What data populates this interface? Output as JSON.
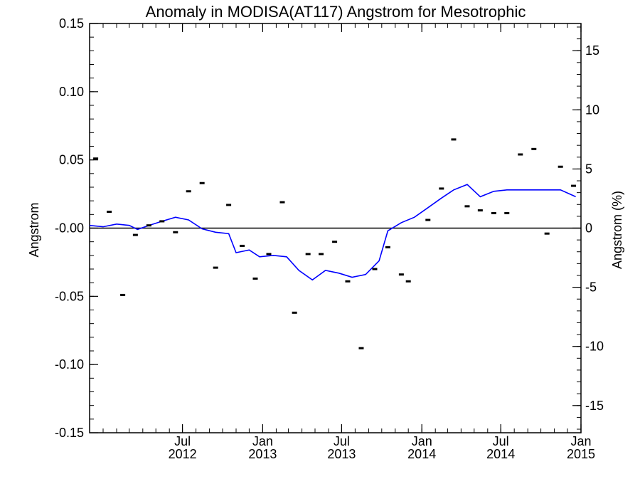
{
  "chart_data": {
    "type": "scatter",
    "title": "Anomaly in MODISA(AT117) Angstrom for Mesotrophic",
    "ylabel": "Angstrom",
    "ylabel_right": "Angstrom (%)",
    "xlabel": "",
    "xlim": [
      "2011-12-01",
      "2015-01-01"
    ],
    "ylim": [
      -0.15,
      0.15
    ],
    "ylim_right": [
      -17.3,
      17.3
    ],
    "x_ticks": [
      {
        "date": "2012-07-01",
        "line1": "Jul",
        "line2": "2012"
      },
      {
        "date": "2013-01-01",
        "line1": "Jan",
        "line2": "2013"
      },
      {
        "date": "2013-07-01",
        "line1": "Jul",
        "line2": "2013"
      },
      {
        "date": "2014-01-01",
        "line1": "Jan",
        "line2": "2014"
      },
      {
        "date": "2014-07-01",
        "line1": "Jul",
        "line2": "2014"
      },
      {
        "date": "2015-01-01",
        "line1": "Jan",
        "line2": "2015"
      }
    ],
    "y_ticks_left": [
      "0.15",
      "0.10",
      "0.05",
      "-0.00",
      "-0.05",
      "-0.10",
      "-0.15"
    ],
    "y_tick_values_left": [
      0.15,
      0.1,
      0.05,
      0.0,
      -0.05,
      -0.1,
      -0.15
    ],
    "y_ticks_right": [
      "15",
      "10",
      "5",
      "0",
      "-5",
      "-10",
      "-15"
    ],
    "y_tick_values_right": [
      15,
      10,
      5,
      0,
      -5,
      -10,
      -15
    ],
    "zero_line": true,
    "grid": false,
    "series": [
      {
        "kind": "monthly-anomaly-points",
        "color": "#000000",
        "points": [
          {
            "x": "2011-12-15",
            "y": 0.051
          },
          {
            "x": "2012-01-15",
            "y": 0.012
          },
          {
            "x": "2012-02-15",
            "y": -0.049
          },
          {
            "x": "2012-03-15",
            "y": -0.005
          },
          {
            "x": "2012-04-15",
            "y": 0.002
          },
          {
            "x": "2012-05-15",
            "y": 0.005
          },
          {
            "x": "2012-06-15",
            "y": -0.003
          },
          {
            "x": "2012-07-15",
            "y": 0.027
          },
          {
            "x": "2012-08-15",
            "y": 0.033
          },
          {
            "x": "2012-09-15",
            "y": -0.029
          },
          {
            "x": "2012-10-15",
            "y": 0.017
          },
          {
            "x": "2012-11-15",
            "y": -0.013
          },
          {
            "x": "2012-12-15",
            "y": -0.037
          },
          {
            "x": "2013-01-15",
            "y": -0.019
          },
          {
            "x": "2013-02-15",
            "y": 0.019
          },
          {
            "x": "2013-03-15",
            "y": -0.062
          },
          {
            "x": "2013-04-15",
            "y": -0.019
          },
          {
            "x": "2013-05-15",
            "y": -0.019
          },
          {
            "x": "2013-06-15",
            "y": -0.01
          },
          {
            "x": "2013-07-15",
            "y": -0.039
          },
          {
            "x": "2013-08-15",
            "y": -0.088
          },
          {
            "x": "2013-09-15",
            "y": -0.03
          },
          {
            "x": "2013-10-15",
            "y": -0.014
          },
          {
            "x": "2013-11-15",
            "y": -0.034
          },
          {
            "x": "2013-12-01",
            "y": -0.039
          },
          {
            "x": "2014-01-15",
            "y": 0.006
          },
          {
            "x": "2014-02-15",
            "y": 0.029
          },
          {
            "x": "2014-03-15",
            "y": 0.065
          },
          {
            "x": "2014-04-15",
            "y": 0.016
          },
          {
            "x": "2014-05-15",
            "y": 0.013
          },
          {
            "x": "2014-06-15",
            "y": 0.011
          },
          {
            "x": "2014-07-15",
            "y": 0.011
          },
          {
            "x": "2014-08-15",
            "y": 0.054
          },
          {
            "x": "2014-09-15",
            "y": 0.058
          },
          {
            "x": "2014-10-15",
            "y": -0.004
          },
          {
            "x": "2014-11-15",
            "y": 0.045
          },
          {
            "x": "2014-12-15",
            "y": 0.031
          }
        ]
      },
      {
        "kind": "smoothed-line",
        "color": "#0000ff",
        "points": [
          {
            "x": "2011-12-01",
            "y": 0.002
          },
          {
            "x": "2012-01-01",
            "y": 0.001
          },
          {
            "x": "2012-02-01",
            "y": 0.003
          },
          {
            "x": "2012-03-01",
            "y": 0.002
          },
          {
            "x": "2012-03-20",
            "y": -0.001
          },
          {
            "x": "2012-04-15",
            "y": 0.002
          },
          {
            "x": "2012-05-15",
            "y": 0.005
          },
          {
            "x": "2012-06-15",
            "y": 0.008
          },
          {
            "x": "2012-07-15",
            "y": 0.006
          },
          {
            "x": "2012-08-15",
            "y": -0.0005
          },
          {
            "x": "2012-09-15",
            "y": -0.003
          },
          {
            "x": "2012-10-15",
            "y": -0.004
          },
          {
            "x": "2012-11-01",
            "y": -0.018
          },
          {
            "x": "2012-12-01",
            "y": -0.016
          },
          {
            "x": "2012-12-25",
            "y": -0.021
          },
          {
            "x": "2013-01-25",
            "y": -0.02
          },
          {
            "x": "2013-02-25",
            "y": -0.021
          },
          {
            "x": "2013-03-25",
            "y": -0.031
          },
          {
            "x": "2013-04-25",
            "y": -0.038
          },
          {
            "x": "2013-05-25",
            "y": -0.031
          },
          {
            "x": "2013-06-25",
            "y": -0.033
          },
          {
            "x": "2013-07-25",
            "y": -0.036
          },
          {
            "x": "2013-08-25",
            "y": -0.034
          },
          {
            "x": "2013-09-25",
            "y": -0.024
          },
          {
            "x": "2013-10-15",
            "y": -0.002
          },
          {
            "x": "2013-11-15",
            "y": 0.004
          },
          {
            "x": "2013-12-15",
            "y": 0.008
          },
          {
            "x": "2014-01-15",
            "y": 0.015
          },
          {
            "x": "2014-02-15",
            "y": 0.022
          },
          {
            "x": "2014-03-15",
            "y": 0.028
          },
          {
            "x": "2014-04-15",
            "y": 0.032
          },
          {
            "x": "2014-05-15",
            "y": 0.023
          },
          {
            "x": "2014-06-15",
            "y": 0.027
          },
          {
            "x": "2014-07-15",
            "y": 0.028
          },
          {
            "x": "2014-08-15",
            "y": 0.028
          },
          {
            "x": "2014-09-15",
            "y": 0.028
          },
          {
            "x": "2014-10-15",
            "y": 0.028
          },
          {
            "x": "2014-11-15",
            "y": 0.028
          },
          {
            "x": "2014-12-20",
            "y": 0.023
          }
        ]
      }
    ]
  }
}
